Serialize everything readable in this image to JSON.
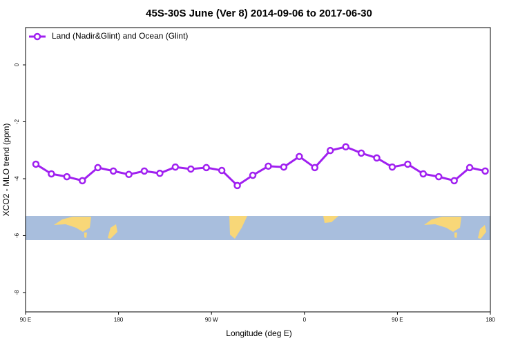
{
  "chart_data": {
    "type": "line",
    "title": "45S-30S June (Ver 8)   2014-09-06 to 2017-06-30",
    "x_label": "Longitude (deg E)",
    "y_label": "XCO2 - MLO trend (ppm)",
    "x": [
      100,
      115,
      130,
      145,
      160,
      175,
      190,
      205,
      220,
      235,
      250,
      265,
      280,
      295,
      310,
      325,
      340,
      355,
      370,
      385,
      400,
      415,
      430,
      445,
      460,
      475,
      490,
      505,
      520,
      535
    ],
    "series": [
      {
        "name": "Land (Nadir&Glint) and Ocean (Glint)",
        "color": "#a020f0",
        "values": [
          -3.49,
          -3.83,
          -3.93,
          -4.07,
          -3.61,
          -3.73,
          -3.85,
          -3.73,
          -3.81,
          -3.59,
          -3.66,
          -3.61,
          -3.71,
          -4.24,
          -3.88,
          -3.56,
          -3.59,
          -3.22,
          -3.61,
          -3.01,
          -2.88,
          -3.1,
          -3.27,
          -3.59,
          -3.49,
          -3.83,
          -3.93,
          -4.07,
          -3.61,
          -3.73
        ]
      }
    ],
    "xlim": [
      90,
      540
    ],
    "xticks": [
      {
        "value": 90,
        "label": "90 E"
      },
      {
        "value": 180,
        "label": "180"
      },
      {
        "value": 270,
        "label": "90 W"
      },
      {
        "value": 360,
        "label": "0"
      },
      {
        "value": 450,
        "label": "90 E"
      },
      {
        "value": 540,
        "label": "180"
      }
    ],
    "ylim": [
      -8.68,
      1.31
    ],
    "yticks": [
      0,
      -2,
      -4,
      -6,
      -8
    ],
    "legend": "top-left"
  }
}
